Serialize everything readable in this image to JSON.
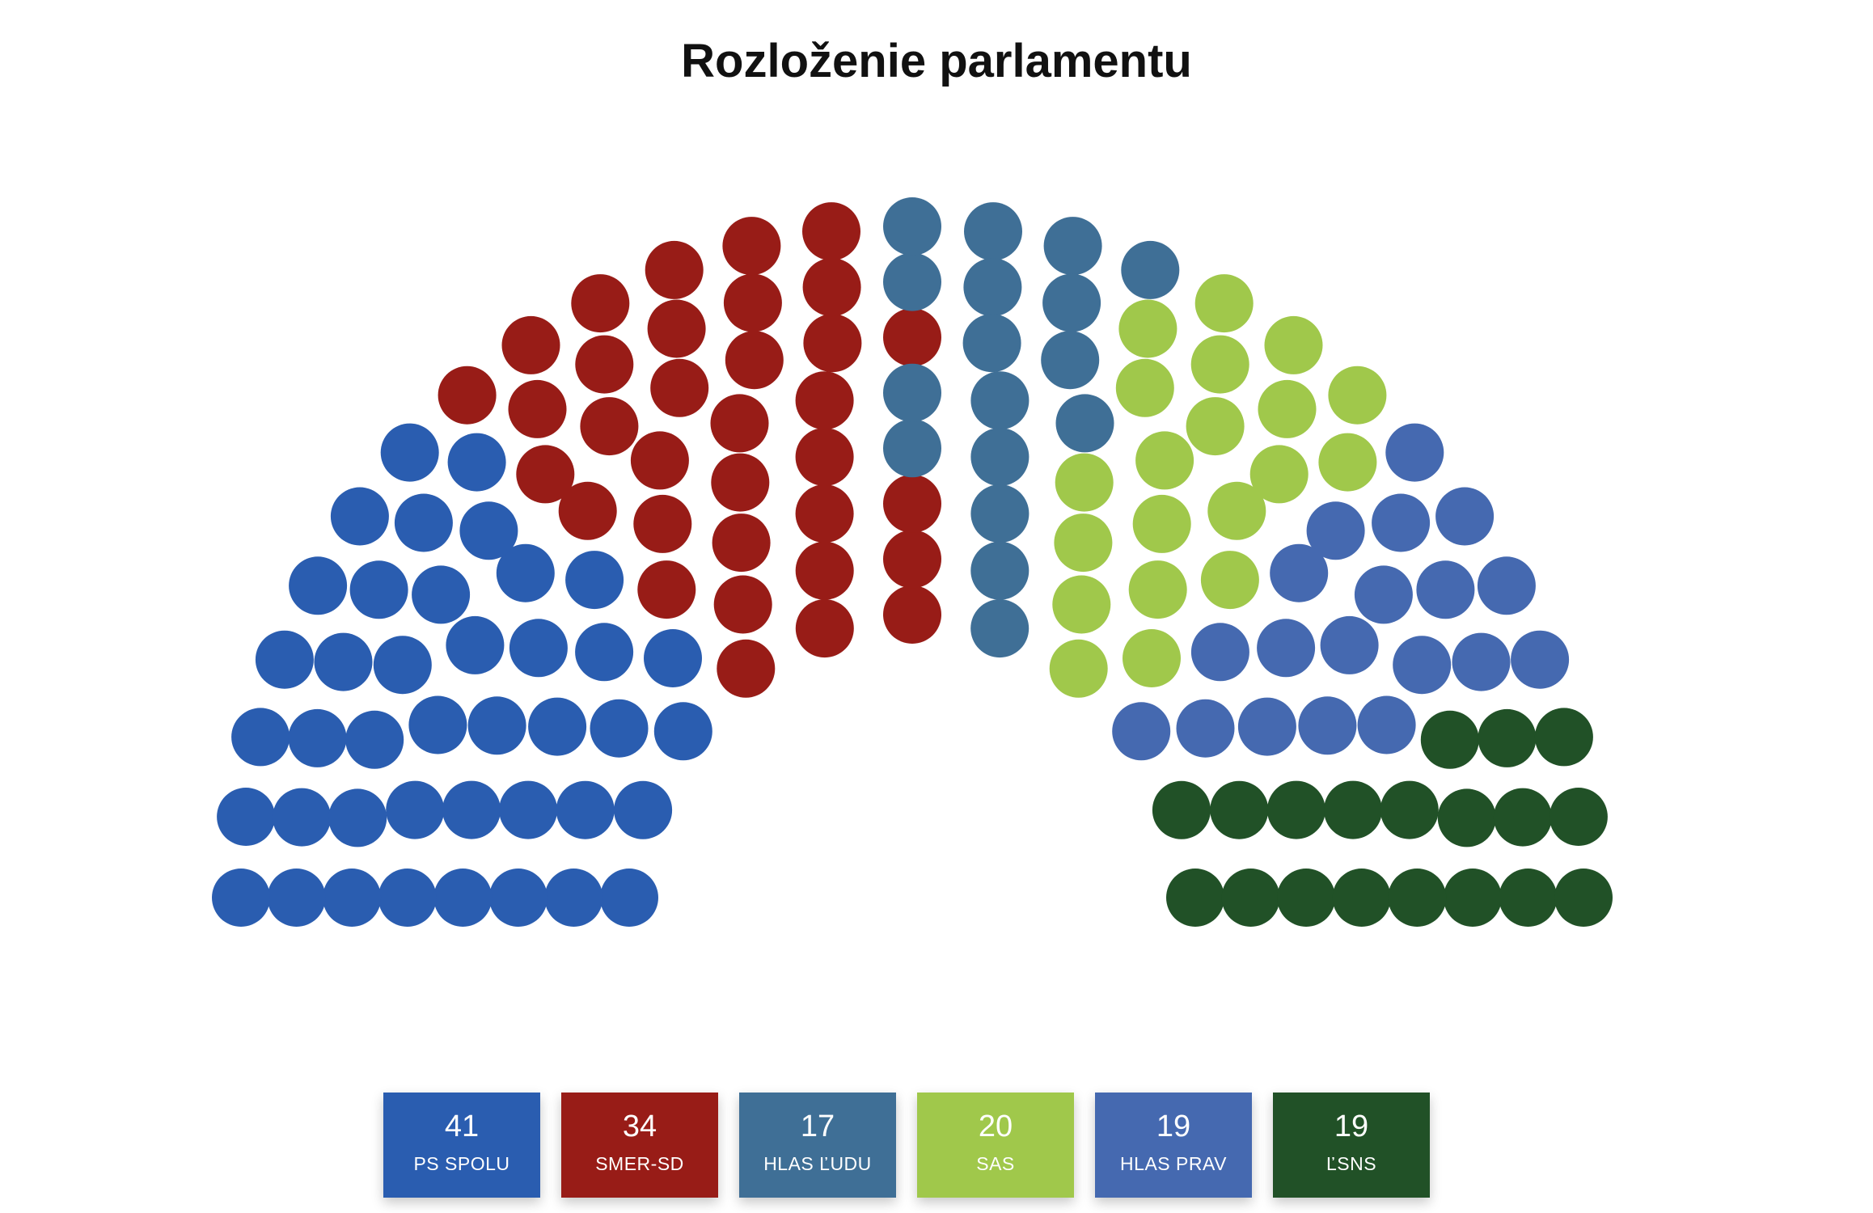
{
  "title": "Rozloženie parlamentu",
  "chart_data": {
    "type": "parliament",
    "title": "Rozloženie parlamentu",
    "total_seats": 150,
    "parties": [
      {
        "name": "PS SPOLU",
        "seats": 41,
        "color": "#2a5db0"
      },
      {
        "name": "SMER-SD",
        "seats": 34,
        "color": "#981c17"
      },
      {
        "name": "HLAS ĽUDU",
        "seats": 17,
        "color": "#3f6f96"
      },
      {
        "name": "SAS",
        "seats": 20,
        "color": "#a0c84b"
      },
      {
        "name": "HLAS PRAV",
        "seats": 19,
        "color": "#4569b0"
      },
      {
        "name": "ĽSNS",
        "seats": 19,
        "color": "#215127"
      }
    ]
  }
}
